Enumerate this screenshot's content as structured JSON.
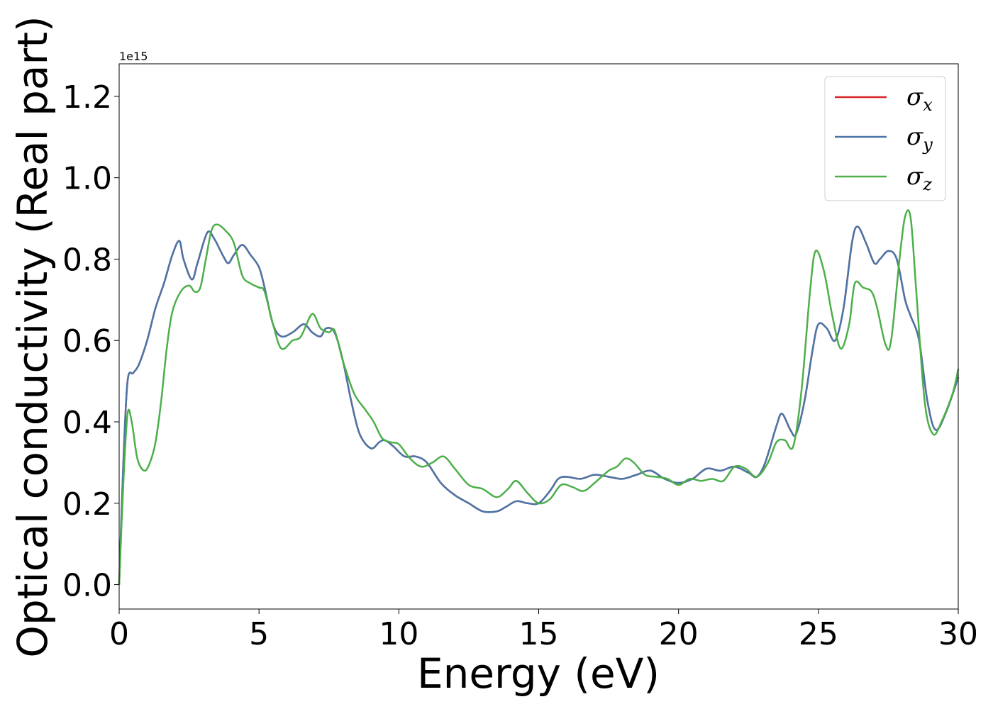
{
  "chart_data": {
    "type": "line",
    "title": "",
    "xlabel": "Energy (eV)",
    "ylabel": "Optical conductivity (Real part)",
    "y_offset_label": "1e15",
    "xlim": [
      0,
      30
    ],
    "ylim": [
      -0.06,
      1.28
    ],
    "xticks": [
      0,
      5,
      10,
      15,
      20,
      25,
      30
    ],
    "xtick_labels": [
      "0",
      "5",
      "10",
      "15",
      "20",
      "25",
      "30"
    ],
    "yticks": [
      0.0,
      0.2,
      0.4,
      0.6,
      0.8,
      1.0,
      1.2
    ],
    "ytick_labels": [
      "0.0",
      "0.2",
      "0.4",
      "0.6",
      "0.8",
      "1.0",
      "1.2"
    ],
    "grid": false,
    "legend_position": "top-right",
    "series": [
      {
        "name": "σx",
        "symbol": "σ",
        "subscript": "x",
        "color": "#d62728",
        "x": [
          0,
          0.15,
          0.3,
          0.5,
          0.7,
          1.0,
          1.3,
          1.6,
          1.9,
          2.15,
          2.3,
          2.6,
          2.8,
          3.15,
          3.4,
          3.7,
          3.9,
          4.1,
          4.4,
          4.7,
          5.0,
          5.2,
          5.5,
          5.8,
          6.2,
          6.6,
          6.9,
          7.2,
          7.4,
          7.7,
          8.0,
          8.3,
          8.6,
          9.0,
          9.3,
          9.5,
          9.8,
          10.2,
          10.6,
          11.0,
          11.5,
          12.0,
          12.5,
          13.0,
          13.5,
          13.8,
          14.2,
          14.6,
          15.0,
          15.4,
          15.7,
          16.0,
          16.5,
          17.0,
          17.5,
          18.0,
          18.5,
          19.0,
          19.5,
          20.0,
          20.5,
          21.0,
          21.5,
          22.0,
          22.5,
          22.8,
          23.1,
          23.5,
          23.7,
          24.0,
          24.2,
          24.5,
          24.8,
          25.0,
          25.3,
          25.6,
          25.9,
          26.2,
          26.4,
          26.7,
          27.0,
          27.2,
          27.5,
          27.8,
          28.1,
          28.3,
          28.6,
          28.9,
          29.2,
          29.6,
          30.0
        ],
        "y": [
          0.0,
          0.3,
          0.5,
          0.52,
          0.54,
          0.6,
          0.68,
          0.74,
          0.81,
          0.845,
          0.8,
          0.75,
          0.79,
          0.865,
          0.85,
          0.81,
          0.79,
          0.81,
          0.835,
          0.81,
          0.78,
          0.73,
          0.64,
          0.61,
          0.62,
          0.64,
          0.62,
          0.61,
          0.63,
          0.62,
          0.55,
          0.45,
          0.37,
          0.335,
          0.35,
          0.355,
          0.34,
          0.315,
          0.315,
          0.3,
          0.25,
          0.22,
          0.2,
          0.18,
          0.18,
          0.19,
          0.205,
          0.2,
          0.2,
          0.23,
          0.26,
          0.265,
          0.26,
          0.27,
          0.265,
          0.26,
          0.27,
          0.28,
          0.26,
          0.25,
          0.26,
          0.285,
          0.28,
          0.29,
          0.275,
          0.265,
          0.3,
          0.39,
          0.42,
          0.38,
          0.37,
          0.45,
          0.58,
          0.64,
          0.63,
          0.6,
          0.68,
          0.84,
          0.88,
          0.84,
          0.79,
          0.8,
          0.82,
          0.8,
          0.7,
          0.66,
          0.6,
          0.45,
          0.38,
          0.43,
          0.51
        ]
      },
      {
        "name": "σy",
        "symbol": "σ",
        "subscript": "y",
        "color": "#4a76a8",
        "x": [
          0,
          0.15,
          0.3,
          0.5,
          0.7,
          1.0,
          1.3,
          1.6,
          1.9,
          2.15,
          2.3,
          2.6,
          2.8,
          3.15,
          3.4,
          3.7,
          3.9,
          4.1,
          4.4,
          4.7,
          5.0,
          5.2,
          5.5,
          5.8,
          6.2,
          6.6,
          6.9,
          7.2,
          7.4,
          7.7,
          8.0,
          8.3,
          8.6,
          9.0,
          9.3,
          9.5,
          9.8,
          10.2,
          10.6,
          11.0,
          11.5,
          12.0,
          12.5,
          13.0,
          13.5,
          13.8,
          14.2,
          14.6,
          15.0,
          15.4,
          15.7,
          16.0,
          16.5,
          17.0,
          17.5,
          18.0,
          18.5,
          19.0,
          19.5,
          20.0,
          20.5,
          21.0,
          21.5,
          22.0,
          22.5,
          22.8,
          23.1,
          23.5,
          23.7,
          24.0,
          24.2,
          24.5,
          24.8,
          25.0,
          25.3,
          25.6,
          25.9,
          26.2,
          26.4,
          26.7,
          27.0,
          27.2,
          27.5,
          27.8,
          28.1,
          28.3,
          28.6,
          28.9,
          29.2,
          29.6,
          30.0
        ],
        "y": [
          0.0,
          0.3,
          0.5,
          0.52,
          0.54,
          0.6,
          0.68,
          0.74,
          0.81,
          0.845,
          0.8,
          0.75,
          0.79,
          0.865,
          0.85,
          0.81,
          0.79,
          0.81,
          0.835,
          0.81,
          0.78,
          0.73,
          0.64,
          0.61,
          0.62,
          0.64,
          0.62,
          0.61,
          0.63,
          0.62,
          0.55,
          0.45,
          0.37,
          0.335,
          0.35,
          0.355,
          0.34,
          0.315,
          0.315,
          0.3,
          0.25,
          0.22,
          0.2,
          0.18,
          0.18,
          0.19,
          0.205,
          0.2,
          0.2,
          0.23,
          0.26,
          0.265,
          0.26,
          0.27,
          0.265,
          0.26,
          0.27,
          0.28,
          0.26,
          0.25,
          0.26,
          0.285,
          0.28,
          0.29,
          0.275,
          0.265,
          0.3,
          0.39,
          0.42,
          0.38,
          0.37,
          0.45,
          0.58,
          0.64,
          0.63,
          0.6,
          0.68,
          0.84,
          0.88,
          0.84,
          0.79,
          0.8,
          0.82,
          0.8,
          0.7,
          0.66,
          0.6,
          0.45,
          0.38,
          0.43,
          0.51
        ]
      },
      {
        "name": "σz",
        "symbol": "σ",
        "subscript": "z",
        "color": "#4daf4a",
        "x": [
          0,
          0.15,
          0.3,
          0.45,
          0.65,
          0.9,
          1.1,
          1.3,
          1.5,
          1.7,
          1.9,
          2.2,
          2.5,
          2.7,
          2.9,
          3.1,
          3.3,
          3.5,
          3.8,
          4.1,
          4.4,
          4.7,
          5.0,
          5.2,
          5.5,
          5.8,
          6.2,
          6.5,
          6.9,
          7.2,
          7.5,
          7.7,
          8.0,
          8.4,
          8.8,
          9.1,
          9.4,
          9.7,
          10.0,
          10.4,
          10.8,
          11.2,
          11.6,
          12.0,
          12.5,
          13.0,
          13.5,
          13.9,
          14.2,
          14.6,
          15.0,
          15.4,
          15.8,
          16.2,
          16.6,
          17.0,
          17.5,
          17.8,
          18.1,
          18.4,
          18.8,
          19.2,
          19.6,
          20.0,
          20.4,
          20.8,
          21.2,
          21.6,
          22.0,
          22.4,
          22.8,
          23.2,
          23.5,
          23.8,
          24.1,
          24.4,
          24.7,
          24.9,
          25.2,
          25.5,
          25.8,
          26.1,
          26.3,
          26.6,
          26.9,
          27.1,
          27.4,
          27.6,
          27.9,
          28.1,
          28.3,
          28.5,
          28.8,
          29.1,
          29.4,
          29.8,
          30.0
        ],
        "y": [
          0.0,
          0.25,
          0.42,
          0.4,
          0.31,
          0.28,
          0.3,
          0.35,
          0.45,
          0.58,
          0.67,
          0.72,
          0.735,
          0.72,
          0.73,
          0.8,
          0.87,
          0.885,
          0.87,
          0.84,
          0.76,
          0.74,
          0.73,
          0.72,
          0.64,
          0.58,
          0.6,
          0.61,
          0.665,
          0.63,
          0.62,
          0.625,
          0.55,
          0.47,
          0.43,
          0.4,
          0.36,
          0.35,
          0.345,
          0.31,
          0.29,
          0.3,
          0.315,
          0.285,
          0.245,
          0.235,
          0.215,
          0.235,
          0.255,
          0.225,
          0.2,
          0.21,
          0.245,
          0.24,
          0.23,
          0.25,
          0.28,
          0.29,
          0.31,
          0.3,
          0.27,
          0.265,
          0.26,
          0.245,
          0.26,
          0.255,
          0.26,
          0.255,
          0.29,
          0.285,
          0.265,
          0.3,
          0.35,
          0.355,
          0.34,
          0.48,
          0.72,
          0.82,
          0.77,
          0.66,
          0.58,
          0.64,
          0.74,
          0.73,
          0.72,
          0.68,
          0.59,
          0.6,
          0.8,
          0.905,
          0.9,
          0.72,
          0.45,
          0.37,
          0.4,
          0.47,
          0.53
        ]
      }
    ]
  }
}
